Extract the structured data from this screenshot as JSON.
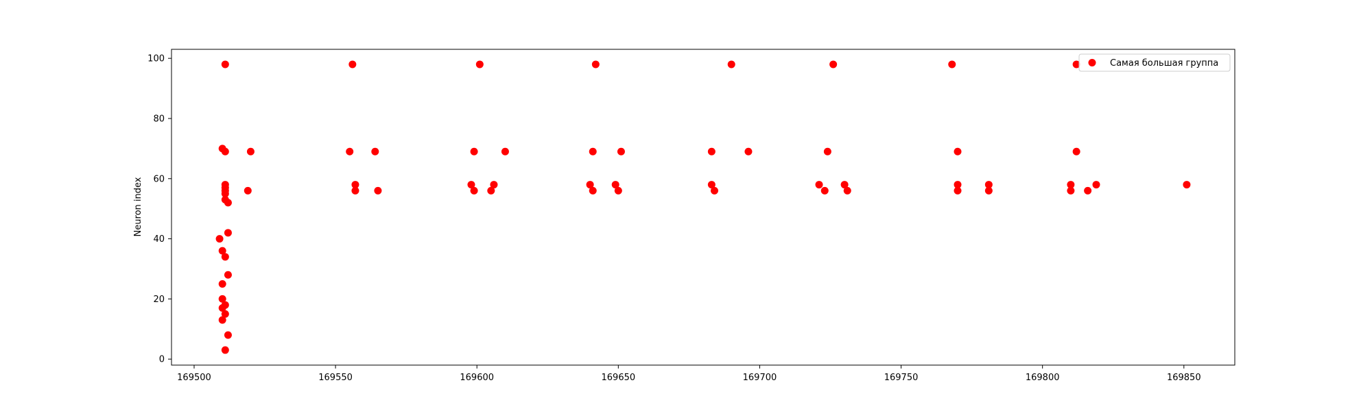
{
  "chart_data": {
    "type": "scatter",
    "title": "",
    "xlabel": "",
    "ylabel": "Neuron index",
    "xlim": [
      169492,
      169868
    ],
    "ylim": [
      -2,
      103
    ],
    "xticks": [
      169500,
      169550,
      169600,
      169650,
      169700,
      169750,
      169800,
      169850
    ],
    "yticks": [
      0,
      20,
      40,
      60,
      80,
      100
    ],
    "grid": false,
    "legend": {
      "placement": "top-right"
    },
    "series": [
      {
        "name": "Самая большая группа",
        "color": "#ff0000",
        "points": [
          [
            169511,
            98
          ],
          [
            169510,
            70
          ],
          [
            169511,
            69
          ],
          [
            169511,
            58
          ],
          [
            169511,
            57
          ],
          [
            169511,
            56
          ],
          [
            169511,
            55
          ],
          [
            169511,
            53
          ],
          [
            169512,
            52
          ],
          [
            169512,
            42
          ],
          [
            169509,
            40
          ],
          [
            169510,
            36
          ],
          [
            169511,
            34
          ],
          [
            169512,
            28
          ],
          [
            169510,
            25
          ],
          [
            169510,
            20
          ],
          [
            169511,
            18
          ],
          [
            169510,
            17
          ],
          [
            169511,
            15
          ],
          [
            169510,
            13
          ],
          [
            169512,
            8
          ],
          [
            169511,
            3
          ],
          [
            169519,
            56
          ],
          [
            169520,
            69
          ],
          [
            169556,
            98
          ],
          [
            169555,
            69
          ],
          [
            169557,
            58
          ],
          [
            169557,
            56
          ],
          [
            169564,
            69
          ],
          [
            169565,
            56
          ],
          [
            169601,
            98
          ],
          [
            169598,
            58
          ],
          [
            169599,
            56
          ],
          [
            169599,
            69
          ],
          [
            169605,
            56
          ],
          [
            169606,
            58
          ],
          [
            169610,
            69
          ],
          [
            169642,
            98
          ],
          [
            169640,
            58
          ],
          [
            169641,
            56
          ],
          [
            169641,
            69
          ],
          [
            169649,
            58
          ],
          [
            169650,
            56
          ],
          [
            169651,
            69
          ],
          [
            169690,
            98
          ],
          [
            169683,
            69
          ],
          [
            169683,
            58
          ],
          [
            169684,
            56
          ],
          [
            169696,
            69
          ],
          [
            169726,
            98
          ],
          [
            169721,
            58
          ],
          [
            169723,
            56
          ],
          [
            169724,
            69
          ],
          [
            169730,
            58
          ],
          [
            169731,
            56
          ],
          [
            169768,
            98
          ],
          [
            169770,
            58
          ],
          [
            169770,
            56
          ],
          [
            169770,
            69
          ],
          [
            169781,
            58
          ],
          [
            169781,
            56
          ],
          [
            169812,
            98
          ],
          [
            169810,
            56
          ],
          [
            169810,
            58
          ],
          [
            169812,
            69
          ],
          [
            169816,
            56
          ],
          [
            169819,
            58
          ],
          [
            169851,
            58
          ]
        ]
      }
    ]
  }
}
